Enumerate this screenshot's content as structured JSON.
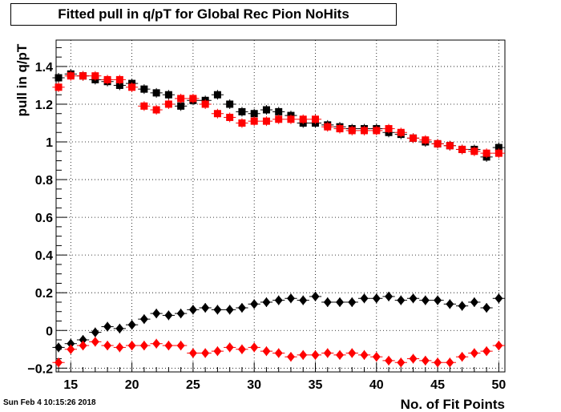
{
  "chart_data": {
    "type": "scatter",
    "title": "Fitted pull in q/pT for Global Rec Pion NoHits",
    "xlabel": "No. of Fit Points",
    "ylabel": "pull in q/pT",
    "xlim": [
      13.8,
      50.5
    ],
    "ylim": [
      -0.22,
      1.54
    ],
    "xticks": [
      15,
      20,
      25,
      30,
      35,
      40,
      45,
      50
    ],
    "xtick_labels": [
      "15",
      "20",
      "25",
      "30",
      "35",
      "40",
      "45",
      "50"
    ],
    "yticks": [
      -0.2,
      0,
      0.2,
      0.4,
      0.6,
      0.8,
      1,
      1.2,
      1.4
    ],
    "ytick_labels": [
      "−0.2",
      "0",
      "0.2",
      "0.4",
      "0.6",
      "0.8",
      "1",
      "1.2",
      "1.4"
    ],
    "grid": true,
    "legend": "none",
    "x": [
      14,
      15,
      16,
      17,
      18,
      19,
      20,
      21,
      22,
      23,
      24,
      25,
      26,
      27,
      28,
      29,
      30,
      31,
      32,
      33,
      34,
      35,
      36,
      37,
      38,
      39,
      40,
      41,
      42,
      43,
      44,
      45,
      46,
      47,
      48,
      49,
      50
    ],
    "series": [
      {
        "marker": "square",
        "color": "#000000",
        "values": [
          1.34,
          1.36,
          1.35,
          1.33,
          1.32,
          1.3,
          1.31,
          1.28,
          1.26,
          1.25,
          1.19,
          1.22,
          1.22,
          1.25,
          1.2,
          1.16,
          1.15,
          1.17,
          1.16,
          1.14,
          1.1,
          1.1,
          1.09,
          1.08,
          1.07,
          1.07,
          1.07,
          1.05,
          1.04,
          1.02,
          1.0,
          0.99,
          0.98,
          0.96,
          0.96,
          0.92,
          0.97
        ]
      },
      {
        "marker": "square",
        "color": "#ff0000",
        "values": [
          1.29,
          1.35,
          1.35,
          1.35,
          1.33,
          1.33,
          1.29,
          1.19,
          1.17,
          1.2,
          1.23,
          1.23,
          1.2,
          1.15,
          1.13,
          1.1,
          1.11,
          1.11,
          1.12,
          1.12,
          1.12,
          1.12,
          1.08,
          1.07,
          1.06,
          1.06,
          1.06,
          1.07,
          1.05,
          1.02,
          1.01,
          0.99,
          0.98,
          0.96,
          0.95,
          0.94,
          0.94
        ]
      },
      {
        "marker": "diamond",
        "color": "#000000",
        "values": [
          -0.09,
          -0.07,
          -0.05,
          -0.01,
          0.02,
          0.01,
          0.03,
          0.06,
          0.09,
          0.08,
          0.09,
          0.11,
          0.12,
          0.11,
          0.11,
          0.12,
          0.14,
          0.15,
          0.16,
          0.17,
          0.16,
          0.18,
          0.15,
          0.15,
          0.15,
          0.17,
          0.17,
          0.18,
          0.16,
          0.17,
          0.16,
          0.16,
          0.14,
          0.13,
          0.15,
          0.12,
          0.17
        ]
      },
      {
        "marker": "diamond",
        "color": "#ff0000",
        "values": [
          -0.17,
          -0.1,
          -0.08,
          -0.06,
          -0.08,
          -0.09,
          -0.08,
          -0.08,
          -0.07,
          -0.08,
          -0.08,
          -0.12,
          -0.12,
          -0.11,
          -0.09,
          -0.1,
          -0.09,
          -0.11,
          -0.12,
          -0.14,
          -0.13,
          -0.13,
          -0.12,
          -0.13,
          -0.12,
          -0.13,
          -0.14,
          -0.16,
          -0.17,
          -0.15,
          -0.16,
          -0.17,
          -0.17,
          -0.14,
          -0.12,
          -0.11,
          -0.08
        ]
      }
    ],
    "timestamp": "Sun Feb  4 10:15:26 2018"
  }
}
